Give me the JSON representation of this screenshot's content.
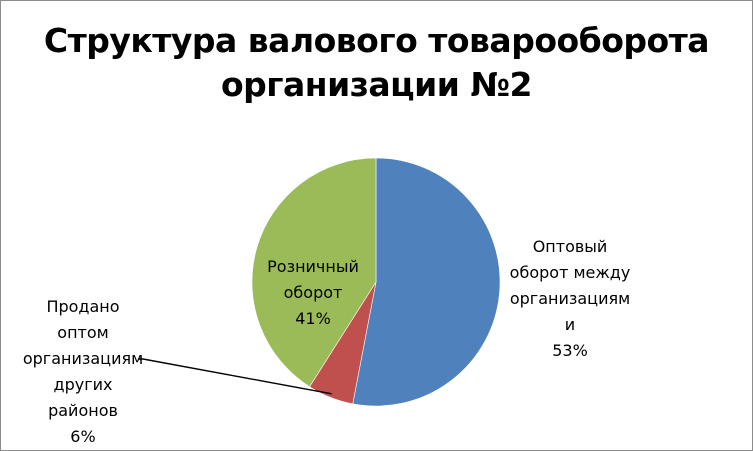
{
  "chart_data": {
    "type": "pie",
    "title_lines": [
      "Структура валового товарооборота",
      "организации №2"
    ],
    "slices": [
      {
        "name": "Оптовый оборот между организациям и",
        "label_lines": [
          "Оптовый",
          "оборот между",
          "организациям",
          "и",
          "53%"
        ],
        "value": 53,
        "color": "#4f81bd"
      },
      {
        "name": "Продано оптом организациям других районов",
        "label_lines": [
          "Продано",
          "оптом",
          "организациям",
          "других",
          "районов",
          "6%"
        ],
        "value": 6,
        "color": "#c0504d"
      },
      {
        "name": "Розничный оборот",
        "label_lines": [
          "Розничный",
          "оборот",
          "41%"
        ],
        "value": 41,
        "color": "#9bbb59"
      }
    ],
    "start_angle_deg": 0,
    "direction": "clockwise",
    "legend": "none"
  }
}
